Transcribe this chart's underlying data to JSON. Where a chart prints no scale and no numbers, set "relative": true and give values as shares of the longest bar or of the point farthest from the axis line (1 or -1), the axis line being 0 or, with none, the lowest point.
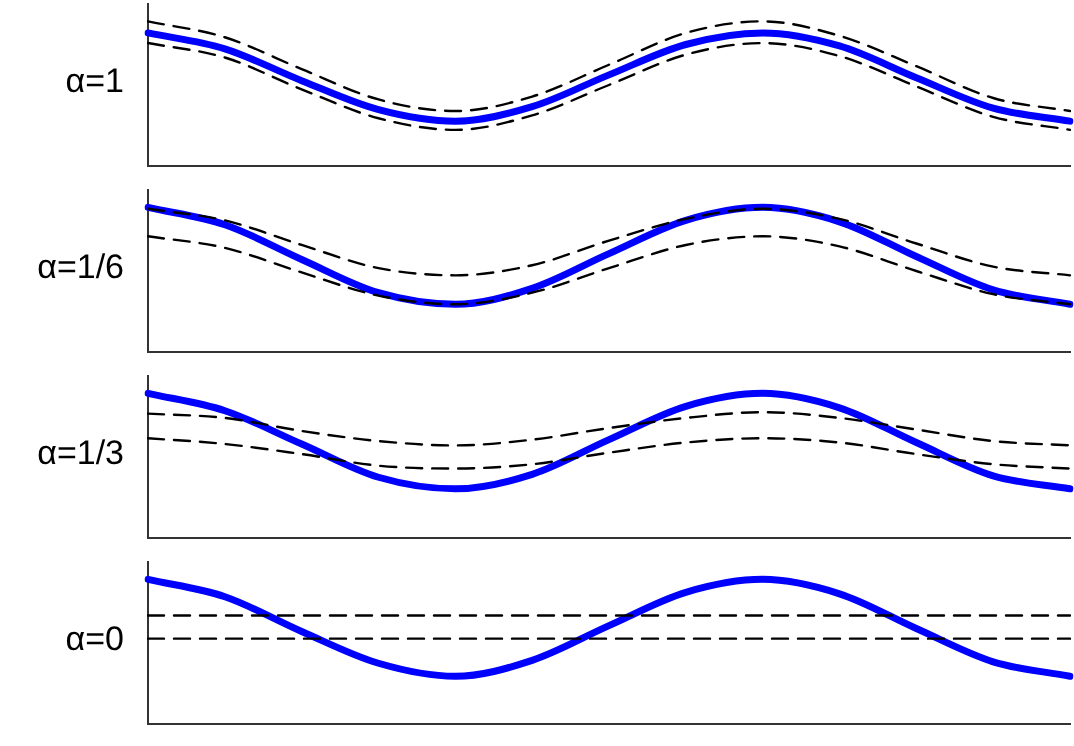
{
  "chart_data": [
    {
      "type": "line",
      "ylabel": "α=1",
      "relative": true,
      "categories": [
        null,
        null,
        null,
        null,
        null,
        null,
        null,
        null,
        null,
        null,
        null,
        null,
        null
      ],
      "series": [
        {
          "color": "#000000",
          "line_style": "dashed",
          "values": [
            1.0,
            0.89,
            0.67,
            0.46,
            0.38,
            0.48,
            0.7,
            0.92,
            1.0,
            0.9,
            0.69,
            0.47,
            0.38
          ]
        },
        {
          "color": "#000000",
          "line_style": "dashed",
          "values": [
            0.85,
            0.75,
            0.53,
            0.33,
            0.25,
            0.35,
            0.56,
            0.77,
            0.85,
            0.76,
            0.55,
            0.34,
            0.25
          ]
        },
        {
          "color": "#0000ff",
          "line_style": "solid",
          "values": [
            0.92,
            0.81,
            0.59,
            0.39,
            0.31,
            0.41,
            0.63,
            0.84,
            0.92,
            0.83,
            0.61,
            0.4,
            0.31
          ]
        }
      ]
    },
    {
      "type": "line",
      "ylabel": "α=1/6",
      "relative": true,
      "categories": [
        null,
        null,
        null,
        null,
        null,
        null,
        null,
        null,
        null,
        null,
        null,
        null,
        null
      ],
      "series": [
        {
          "color": "#000000",
          "line_style": "dashed",
          "values": [
            0.99,
            0.91,
            0.74,
            0.58,
            0.53,
            0.6,
            0.77,
            0.92,
            0.99,
            0.92,
            0.75,
            0.59,
            0.53
          ]
        },
        {
          "color": "#000000",
          "line_style": "dashed",
          "values": [
            0.8,
            0.72,
            0.55,
            0.39,
            0.33,
            0.41,
            0.58,
            0.74,
            0.8,
            0.73,
            0.56,
            0.4,
            0.33
          ]
        },
        {
          "color": "#0000ff",
          "line_style": "solid",
          "values": [
            1.0,
            0.88,
            0.64,
            0.41,
            0.33,
            0.44,
            0.68,
            0.91,
            1.0,
            0.9,
            0.66,
            0.43,
            0.33
          ]
        }
      ]
    },
    {
      "type": "line",
      "ylabel": "α=1/3",
      "relative": true,
      "categories": [
        null,
        null,
        null,
        null,
        null,
        null,
        null,
        null,
        null,
        null,
        null,
        null,
        null
      ],
      "series": [
        {
          "color": "#000000",
          "line_style": "dashed",
          "values": [
            0.86,
            0.83,
            0.74,
            0.67,
            0.64,
            0.68,
            0.76,
            0.83,
            0.87,
            0.83,
            0.75,
            0.67,
            0.64
          ]
        },
        {
          "color": "#000000",
          "line_style": "dashed",
          "values": [
            0.69,
            0.65,
            0.58,
            0.5,
            0.48,
            0.51,
            0.59,
            0.66,
            0.69,
            0.66,
            0.58,
            0.51,
            0.48
          ]
        },
        {
          "color": "#0000ff",
          "line_style": "solid",
          "values": [
            1.0,
            0.88,
            0.65,
            0.42,
            0.34,
            0.44,
            0.68,
            0.91,
            1.0,
            0.9,
            0.66,
            0.43,
            0.34
          ]
        }
      ]
    },
    {
      "type": "line",
      "ylabel": "α=0",
      "relative": true,
      "categories": [
        null,
        null,
        null,
        null,
        null,
        null,
        null,
        null,
        null,
        null,
        null,
        null,
        null
      ],
      "series": [
        {
          "color": "#000000",
          "line_style": "dashed",
          "values": [
            0.75,
            0.75,
            0.75,
            0.75,
            0.75,
            0.75,
            0.75,
            0.75,
            0.75,
            0.75,
            0.75,
            0.75,
            0.75
          ]
        },
        {
          "color": "#000000",
          "line_style": "dashed",
          "values": [
            0.59,
            0.59,
            0.59,
            0.59,
            0.59,
            0.59,
            0.59,
            0.59,
            0.59,
            0.59,
            0.59,
            0.59,
            0.59
          ]
        },
        {
          "color": "#0000ff",
          "line_style": "solid",
          "values": [
            1.0,
            0.88,
            0.64,
            0.42,
            0.33,
            0.44,
            0.68,
            0.91,
            1.0,
            0.9,
            0.66,
            0.43,
            0.33
          ]
        }
      ]
    }
  ]
}
